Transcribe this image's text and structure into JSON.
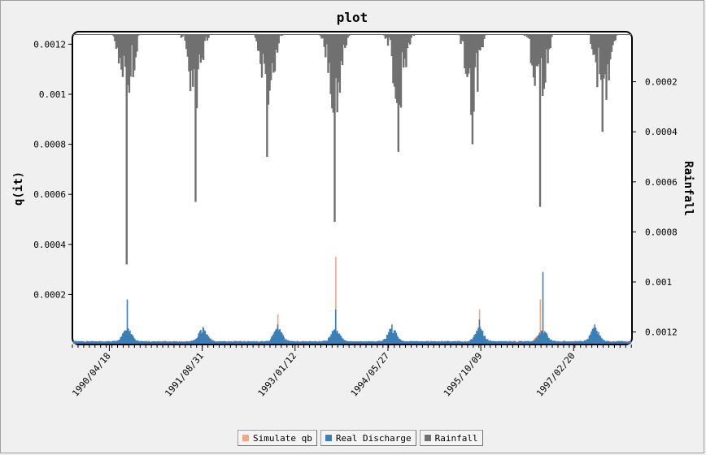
{
  "chart_data": {
    "type": "bar",
    "title": "plot",
    "ylabel": "q(it)",
    "y2label": "Rainfall",
    "y_ticks": [
      "0.0012",
      "0.001",
      "0.0008",
      "0.0006",
      "0.0004",
      "0.0002"
    ],
    "y2_ticks": [
      "0.0002",
      "0.0004",
      "0.0006",
      "0.0008",
      "0.001",
      "0.0012"
    ],
    "ylim": [
      0,
      0.00125
    ],
    "y2lim_inverted": [
      0,
      0.00125
    ],
    "x_tick_labels": [
      "1990/04/18",
      "1991/08/31",
      "1993/01/12",
      "1994/05/27",
      "1995/10/09",
      "1997/02/20"
    ],
    "xlim": [
      "1989/10/01",
      "1997/12/31"
    ],
    "legend_position": "bottom",
    "series": [
      {
        "name": "Simulate qb",
        "color": "#f4a582",
        "peaks": [
          {
            "date": "1990/07/20",
            "value": 5e-05
          },
          {
            "date": "1991/09/15",
            "value": 3e-05
          },
          {
            "date": "1992/10/08",
            "value": 0.00012
          },
          {
            "date": "1993/08/15",
            "value": 0.00035
          },
          {
            "date": "1994/06/15",
            "value": 3e-05
          },
          {
            "date": "1995/09/28",
            "value": 0.00014
          },
          {
            "date": "1996/08/20",
            "value": 0.00018
          },
          {
            "date": "1997/06/01",
            "value": 3e-05
          }
        ]
      },
      {
        "name": "Real Discharge",
        "color": "#3b7fb6",
        "peaks": [
          {
            "date": "1990/07/20",
            "value": 0.00018
          },
          {
            "date": "1991/09/01",
            "value": 7e-05
          },
          {
            "date": "1992/10/08",
            "value": 8e-05
          },
          {
            "date": "1993/08/15",
            "value": 0.00014
          },
          {
            "date": "1994/06/15",
            "value": 8e-05
          },
          {
            "date": "1995/09/28",
            "value": 0.0001
          },
          {
            "date": "1996/09/05",
            "value": 0.00029
          },
          {
            "date": "1997/06/10",
            "value": 8e-05
          }
        ]
      },
      {
        "name": "Rainfall",
        "color": "#707070",
        "peaks": [
          {
            "date": "1990/07/15",
            "value": 0.00093
          },
          {
            "date": "1991/07/20",
            "value": 0.00068
          },
          {
            "date": "1992/08/10",
            "value": 0.0005
          },
          {
            "date": "1993/08/10",
            "value": 0.00076
          },
          {
            "date": "1994/07/20",
            "value": 0.00048
          },
          {
            "date": "1995/08/20",
            "value": 0.00045
          },
          {
            "date": "1996/08/15",
            "value": 0.0007
          },
          {
            "date": "1997/07/20",
            "value": 0.0004
          }
        ]
      }
    ]
  }
}
